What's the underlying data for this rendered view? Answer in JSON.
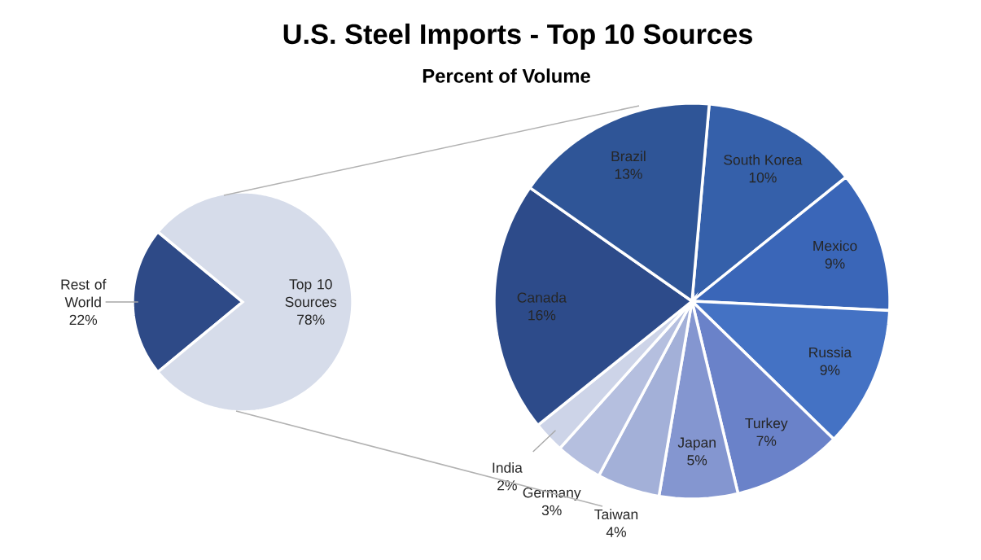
{
  "chart_data": [
    {
      "type": "pie",
      "categories": [
        "Rest of World",
        "Top 10 Sources"
      ],
      "values": [
        22,
        78
      ],
      "value_labels": [
        "22%",
        "78%"
      ],
      "colors": [
        "#2e4a87",
        "#d6dcea"
      ]
    },
    {
      "type": "pie",
      "title": "U.S. Steel Imports - Top 10 Sources",
      "subtitle": "Percent of Volume",
      "categories": [
        "South Korea",
        "Mexico",
        "Russia",
        "Turkey",
        "Japan",
        "Taiwan",
        "Germany",
        "India",
        "Canada",
        "Brazil"
      ],
      "values": [
        10,
        9,
        9,
        7,
        5,
        4,
        3,
        2,
        16,
        13
      ],
      "value_labels": [
        "10%",
        "9%",
        "9%",
        "7%",
        "5%",
        "4%",
        "3%",
        "2%",
        "16%",
        "13%"
      ],
      "colors": [
        "#3560aa",
        "#3a66b8",
        "#4472c4",
        "#6a82c9",
        "#8496d0",
        "#a3b0d8",
        "#b5bfdf",
        "#cdd4e8",
        "#2d4b8a",
        "#2f5597"
      ]
    }
  ]
}
